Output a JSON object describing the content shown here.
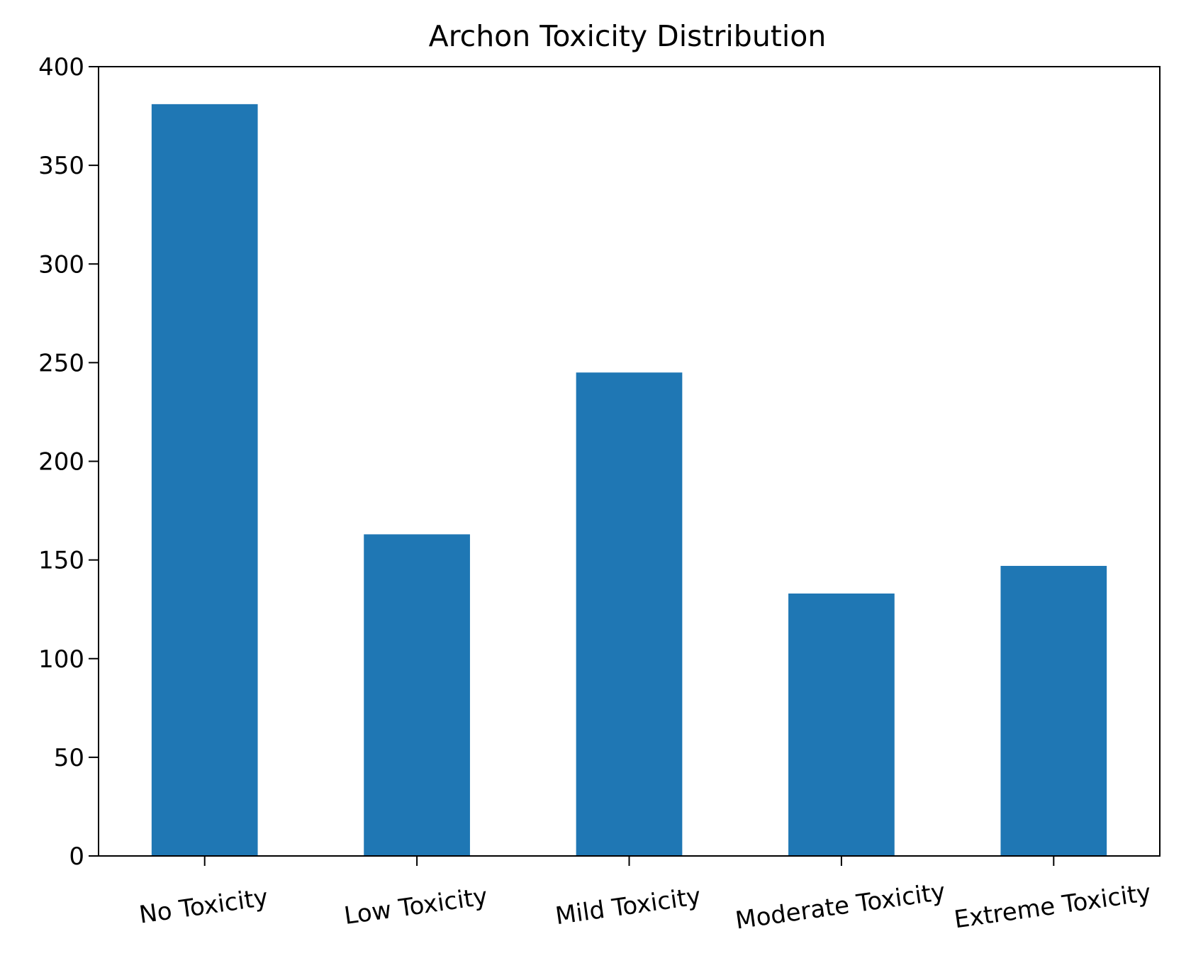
{
  "chart_data": {
    "type": "bar",
    "title": "Archon Toxicity Distribution",
    "xlabel": "",
    "ylabel": "",
    "categories": [
      "No Toxicity",
      "Low Toxicity",
      "Mild Toxicity",
      "Moderate Toxicity",
      "Extreme Toxicity"
    ],
    "values": [
      381,
      163,
      245,
      133,
      147
    ],
    "ylim": [
      0,
      400
    ],
    "yticks": [
      0,
      50,
      100,
      150,
      200,
      250,
      300,
      350,
      400
    ],
    "bar_color": "#1f77b4",
    "grid": false,
    "legend": "none"
  }
}
